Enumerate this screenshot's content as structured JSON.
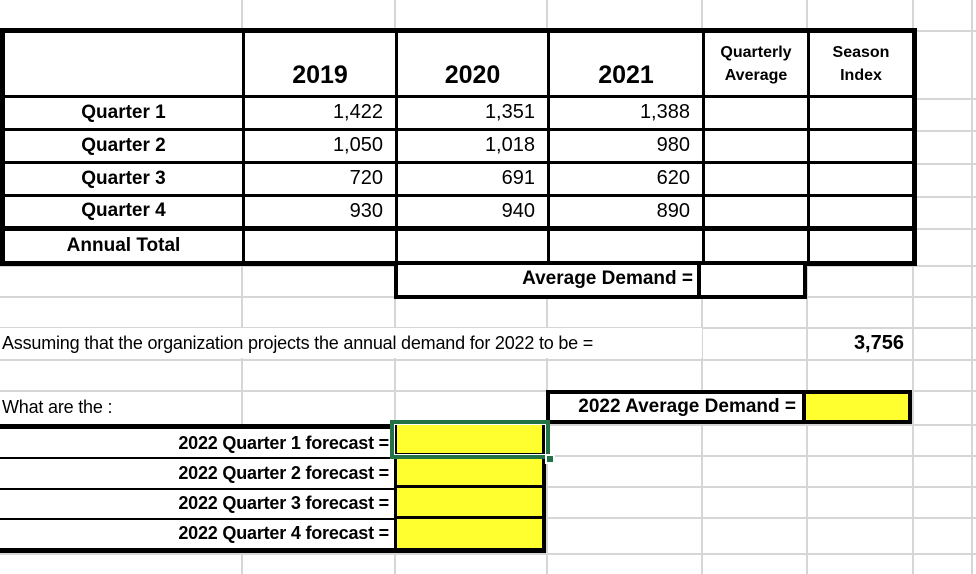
{
  "table": {
    "corner": "",
    "years": [
      "2019",
      "2020",
      "2021"
    ],
    "quarterly_average_header": [
      "Quarterly",
      "Average"
    ],
    "season_index_header": [
      "Season",
      "Index"
    ],
    "rows": [
      {
        "label": "Quarter 1",
        "y2019": "1,422",
        "y2020": "1,351",
        "y2021": "1,388",
        "qavg": "",
        "sidx": ""
      },
      {
        "label": "Quarter 2",
        "y2019": "1,050",
        "y2020": "1,018",
        "y2021": "980",
        "qavg": "",
        "sidx": ""
      },
      {
        "label": "Quarter 3",
        "y2019": "720",
        "y2020": "691",
        "y2021": "620",
        "qavg": "",
        "sidx": ""
      },
      {
        "label": "Quarter 4",
        "y2019": "930",
        "y2020": "940",
        "y2021": "890",
        "qavg": "",
        "sidx": ""
      },
      {
        "label": "Annual Total",
        "y2019": "",
        "y2020": "",
        "y2021": "",
        "qavg": "",
        "sidx": ""
      }
    ]
  },
  "average_demand": {
    "label": "Average Demand =",
    "value": ""
  },
  "assumption": {
    "text": "Assuming that the organization projects the annual demand for 2022 to be =",
    "value": "3,756"
  },
  "question": {
    "text": "What are the :"
  },
  "average_2022": {
    "label": "2022 Average Demand =",
    "value": ""
  },
  "forecasts": [
    {
      "label": "2022 Quarter 1 forecast =",
      "value": "",
      "selected": true
    },
    {
      "label": "2022 Quarter 2 forecast =",
      "value": "",
      "selected": false
    },
    {
      "label": "2022 Quarter 3 forecast =",
      "value": "",
      "selected": false
    },
    {
      "label": "2022 Quarter 4 forecast =",
      "value": "",
      "selected": false
    }
  ],
  "colors": {
    "highlight_fill": "#ffff30",
    "selection_green": "#217346",
    "gridline": "#d6d6d6",
    "border": "#000000"
  }
}
